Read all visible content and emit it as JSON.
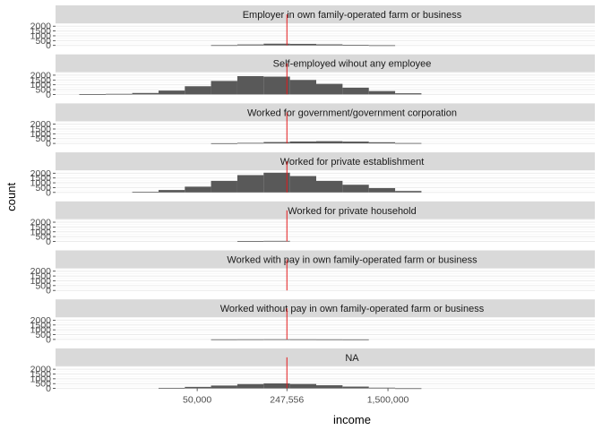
{
  "chart_data": {
    "type": "histogram",
    "layout": "faceted-rows",
    "xlabel": "income",
    "ylabel": "count",
    "x_scale": "log10",
    "x_ticks": [
      {
        "value": 50000,
        "label": "50,000"
      },
      {
        "value": 247556,
        "label": "247,556"
      },
      {
        "value": 1500000,
        "label": "1,500,000"
      }
    ],
    "y_ticks": [
      {
        "value": 0,
        "label": "0"
      },
      {
        "value": 500,
        "label": "500"
      },
      {
        "value": 1000,
        "label": "1000"
      },
      {
        "value": 1500,
        "label": "1500"
      },
      {
        "value": 2000,
        "label": "2000"
      }
    ],
    "ylim": [
      0,
      2300
    ],
    "xlim": [
      4000,
      60000000
    ],
    "reference_line": {
      "value": 247556,
      "color": "#e41a1c"
    },
    "bar_color": "#595959",
    "strip_color": "#d9d9d9",
    "grid": true,
    "bin_left_edges": [
      6100,
      9800,
      15700,
      25100,
      40100,
      64000,
      102300,
      163500,
      261300,
      417600,
      667500,
      1066800,
      1705000
    ],
    "bin_right_edge": 2725000,
    "facets": [
      {
        "label": "Employer in own family-operated farm or business",
        "counts": [
          0,
          0,
          0,
          0,
          0,
          30,
          100,
          180,
          160,
          110,
          60,
          20,
          0
        ]
      },
      {
        "label": "Self-employed wihout any employee",
        "counts": [
          20,
          60,
          150,
          400,
          850,
          1400,
          1900,
          1850,
          1500,
          1100,
          700,
          350,
          120
        ]
      },
      {
        "label": "Worked for government/government corporation",
        "counts": [
          0,
          0,
          0,
          0,
          0,
          20,
          60,
          140,
          200,
          230,
          190,
          120,
          40
        ]
      },
      {
        "label": "Worked for private establishment",
        "counts": [
          0,
          0,
          50,
          250,
          600,
          1200,
          1800,
          2050,
          1700,
          1200,
          800,
          450,
          150
        ]
      },
      {
        "label": "Worked for private household",
        "counts": [
          0,
          0,
          0,
          0,
          0,
          0,
          40,
          60,
          0,
          0,
          0,
          0,
          0
        ]
      },
      {
        "label": "Worked with pay in own family-operated farm or business",
        "counts": [
          0,
          0,
          0,
          0,
          0,
          0,
          0,
          0,
          0,
          0,
          0,
          0,
          0
        ]
      },
      {
        "label": "Worked without pay in own family-operated farm or business",
        "counts": [
          0,
          0,
          0,
          0,
          0,
          10,
          15,
          20,
          15,
          10,
          5,
          0,
          0
        ]
      },
      {
        "label": "NA",
        "counts": [
          0,
          0,
          0,
          60,
          160,
          300,
          450,
          520,
          460,
          330,
          190,
          80,
          20
        ]
      }
    ]
  }
}
